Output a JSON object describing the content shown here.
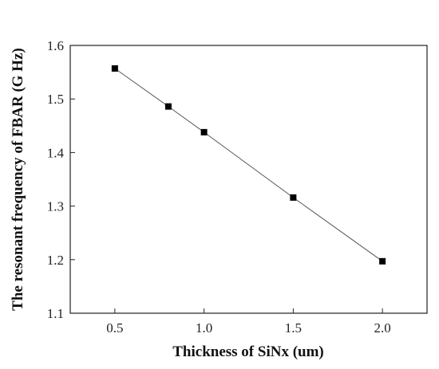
{
  "chart_data": {
    "type": "line",
    "xlabel": "Thickness of SiNx (um)",
    "ylabel": "The resonant frequency of FBAR (G Hz)",
    "xlim": [
      0.25,
      2.25
    ],
    "ylim": [
      1.1,
      1.6
    ],
    "x_ticks": [
      "0.5",
      "1.0",
      "1.5",
      "2.0"
    ],
    "y_ticks": [
      "1.1",
      "1.2",
      "1.3",
      "1.4",
      "1.5",
      "1.6"
    ],
    "x_tick_values": [
      0.5,
      1.0,
      1.5,
      2.0
    ],
    "y_tick_values": [
      1.1,
      1.2,
      1.3,
      1.4,
      1.5,
      1.6
    ],
    "series": [
      {
        "x": [
          0.5,
          0.8,
          1.0,
          1.5,
          2.0
        ],
        "values": [
          1.557,
          1.486,
          1.438,
          1.316,
          1.197
        ],
        "marker": "square",
        "color": "#000000",
        "line_color": "#555555"
      }
    ],
    "grid": false,
    "legend": "none"
  }
}
